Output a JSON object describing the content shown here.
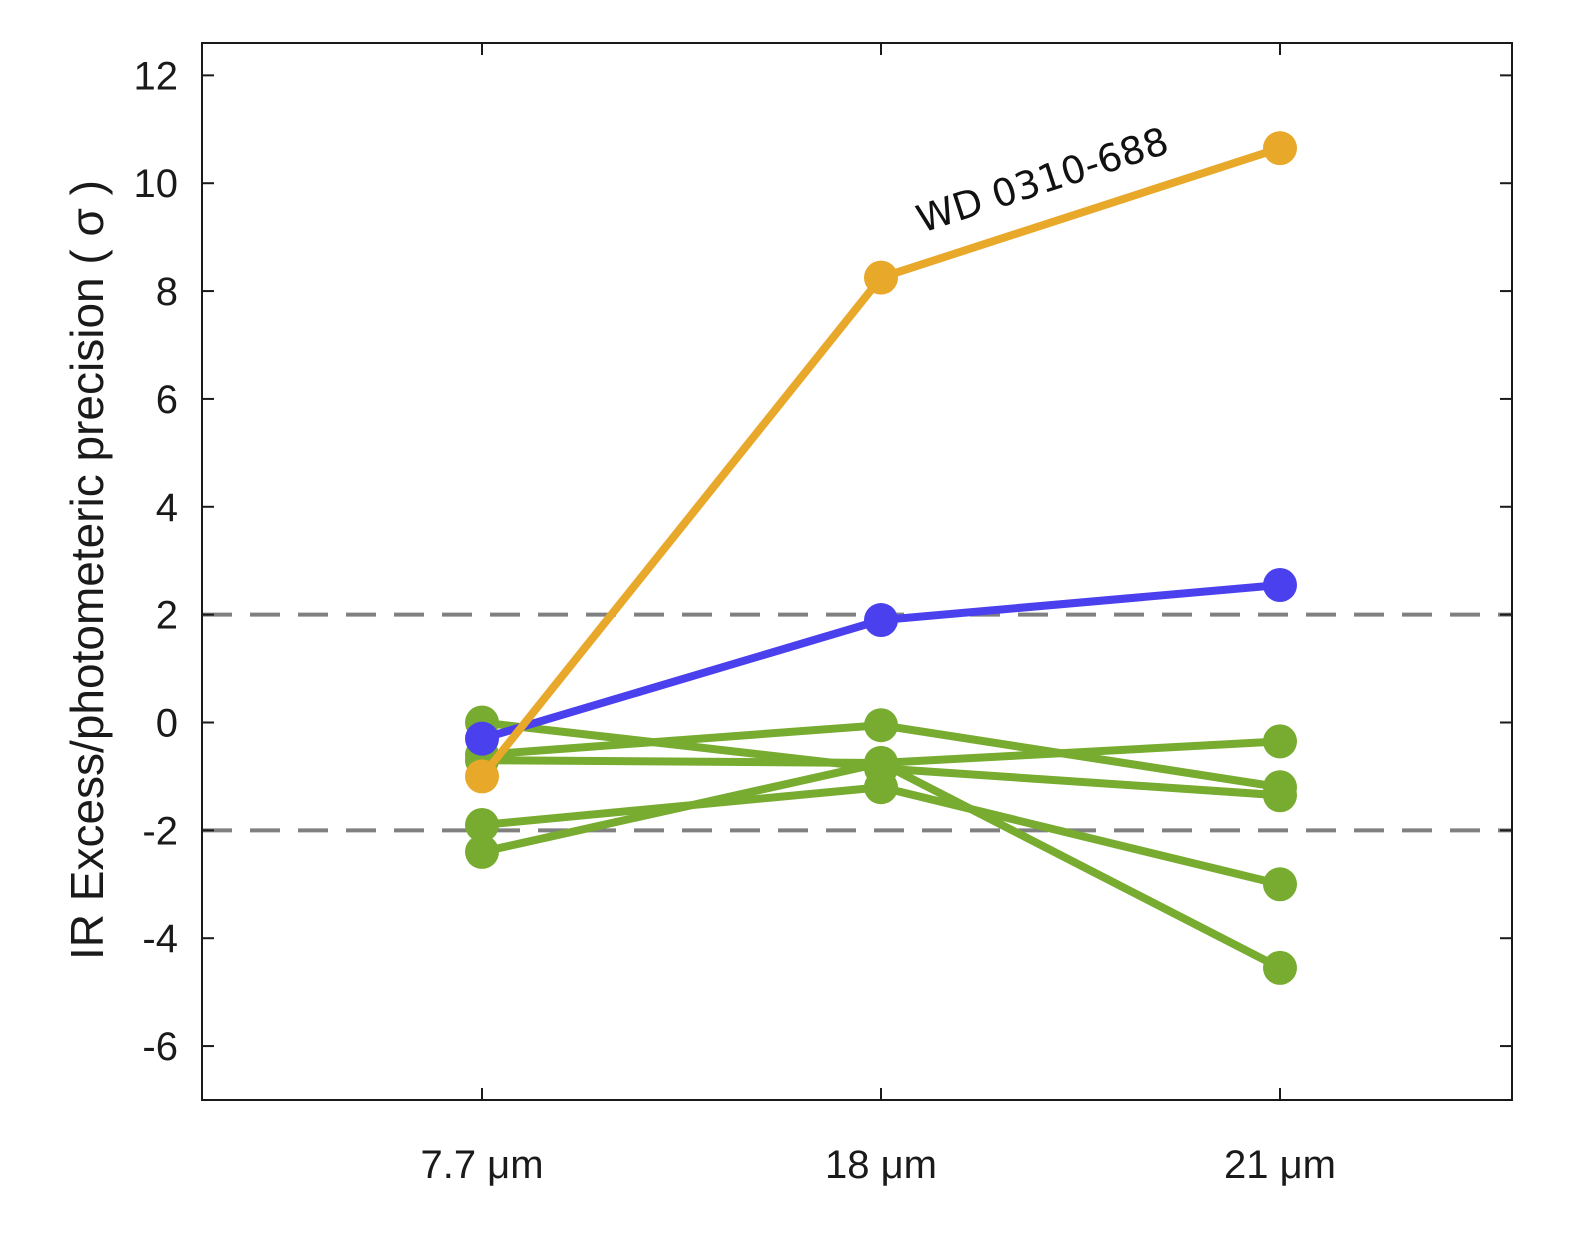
{
  "chart_data": {
    "type": "line",
    "title": "",
    "xlabel": "",
    "ylabel": "IR Excess/photometeric precision ( σ )",
    "categories": [
      "7.7 μm",
      "18 μm",
      "21 μm"
    ],
    "ylim": [
      -7,
      12.6
    ],
    "yticks": [
      12,
      10,
      8,
      6,
      4,
      2,
      0,
      -2,
      -4,
      -6
    ],
    "ytick_labels": [
      "12",
      "10",
      "8",
      "6",
      "4",
      "2",
      "0",
      "-2",
      "-4",
      "-6"
    ],
    "grid": false,
    "reference_lines": [
      2,
      -2
    ],
    "series": [
      {
        "name": "green-1",
        "color": "#77AC30",
        "values": [
          0.0,
          -0.85,
          -1.35
        ]
      },
      {
        "name": "green-2",
        "color": "#77AC30",
        "values": [
          -0.6,
          -0.05,
          -1.2
        ]
      },
      {
        "name": "green-3",
        "color": "#77AC30",
        "values": [
          -0.7,
          -0.75,
          -0.35
        ]
      },
      {
        "name": "green-4",
        "color": "#77AC30",
        "values": [
          -1.9,
          -1.2,
          -3.0
        ]
      },
      {
        "name": "green-5",
        "color": "#77AC30",
        "values": [
          -2.4,
          -0.75,
          -4.55
        ]
      },
      {
        "name": "blue",
        "color": "#4B40EE",
        "values": [
          -0.3,
          1.9,
          2.55
        ]
      },
      {
        "name": "WD 0310-688",
        "color": "#E8A82A",
        "values": [
          -1.0,
          8.25,
          10.65
        ]
      }
    ],
    "annotations": [
      {
        "text": "WD 0310-688",
        "series": "WD 0310-688"
      }
    ]
  },
  "colors": {
    "axis": "#1a1a1a",
    "reference_line": "#808080",
    "background": "#ffffff"
  }
}
